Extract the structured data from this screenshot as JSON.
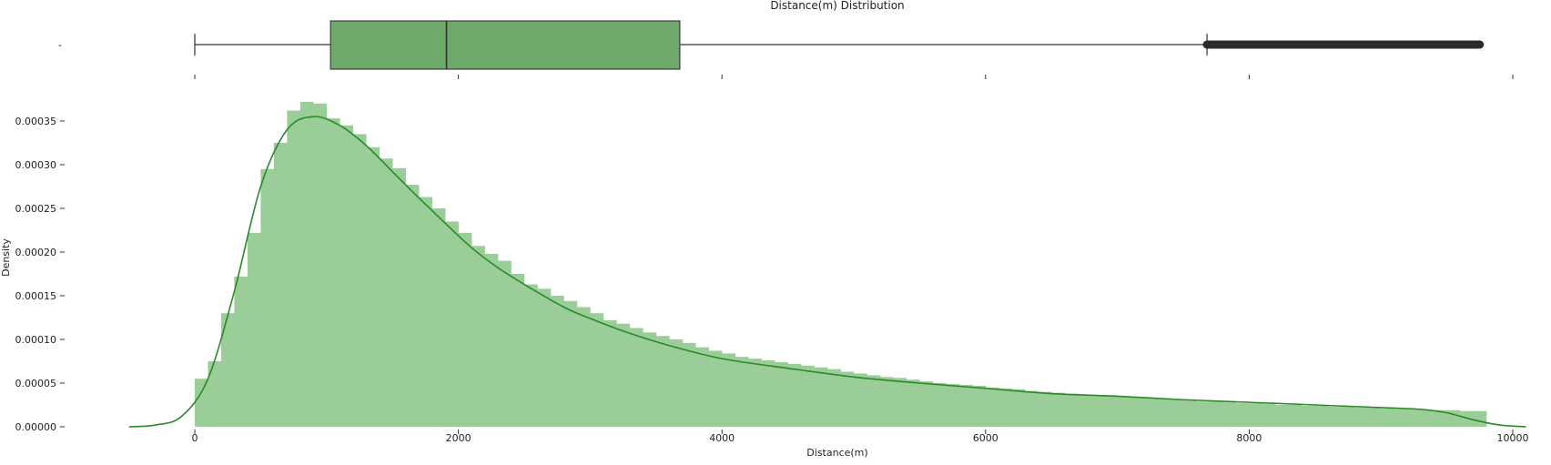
{
  "chart_data": [
    {
      "type": "box",
      "title": "Distance(m) Distribution",
      "y_tick_labels": [
        "-"
      ],
      "box": {
        "whisker_low": 0,
        "q1": 1030,
        "median": 1910,
        "q3": 3680,
        "whisker_high": 7680,
        "outlier_range": [
          7680,
          9750
        ]
      },
      "colors": {
        "box": "#6ea86a",
        "outliers": "#2b2b2b"
      }
    },
    {
      "type": "histogram",
      "xlabel": "Distance(m)",
      "ylabel": "Density",
      "xlim": [
        -500,
        10200
      ],
      "ylim": [
        0,
        0.00038
      ],
      "x_ticks": [
        0,
        2000,
        4000,
        6000,
        8000,
        10000
      ],
      "y_ticks": [
        0,
        5e-05,
        0.0001,
        0.00015,
        0.0002,
        0.00025,
        0.0003,
        0.00035
      ],
      "y_tick_labels": [
        "0.00000",
        "0.00005",
        "0.00010",
        "0.00015",
        "0.00020",
        "0.00025",
        "0.00030",
        "0.00035"
      ],
      "grid": false,
      "bin_start": 0,
      "bin_width": 100,
      "values": [
        5.5e-05,
        7.5e-05,
        0.00013,
        0.000172,
        0.000222,
        0.000295,
        0.000325,
        0.000362,
        0.000372,
        0.00037,
        0.000353,
        0.000345,
        0.000335,
        0.00032,
        0.000307,
        0.000296,
        0.000277,
        0.000263,
        0.00025,
        0.000235,
        0.000222,
        0.000207,
        0.000198,
        0.00019,
        0.000175,
        0.000163,
        0.000158,
        0.00015,
        0.000144,
        0.000137,
        0.00013,
        0.000122,
        0.000118,
        0.000113,
        0.000108,
        0.000104,
        0.0001,
        9.6e-05,
        9.1e-05,
        8.7e-05,
        8.4e-05,
        8e-05,
        7.8e-05,
        7.6e-05,
        7.4e-05,
        7.2e-05,
        7e-05,
        6.8e-05,
        6.6e-05,
        6.3e-05,
        6.1e-05,
        5.9e-05,
        5.7e-05,
        5.6e-05,
        5.4e-05,
        5.2e-05,
        5e-05,
        4.9e-05,
        4.8e-05,
        4.7e-05,
        4.5e-05,
        4.4e-05,
        4.3e-05,
        4.1e-05,
        4e-05,
        3.9e-05,
        3.8e-05,
        3.7e-05,
        3.6e-05,
        3.6e-05,
        3.5e-05,
        3.4e-05,
        3.3e-05,
        3.2e-05,
        3.1e-05,
        3e-05,
        2.9e-05,
        2.9e-05,
        2.8e-05,
        2.7e-05,
        2.7e-05,
        2.6e-05,
        2.5e-05,
        2.5e-05,
        2.4e-05,
        2.4e-05,
        2.3e-05,
        2.3e-05,
        2.2e-05,
        2.2e-05,
        2.1e-05,
        2.1e-05,
        2e-05,
        1.9e-05,
        1.9e-05,
        1.9e-05,
        1.8e-05,
        1.8e-05
      ],
      "kde": {
        "x": [
          -500,
          -300,
          -100,
          100,
          300,
          500,
          700,
          900,
          1100,
          1300,
          1500,
          1700,
          1900,
          2100,
          2300,
          2500,
          2800,
          3000,
          3300,
          3600,
          4000,
          4500,
          5000,
          5500,
          6000,
          6500,
          7000,
          7500,
          8000,
          8500,
          9000,
          9300,
          9500,
          9700,
          9900,
          10100
        ],
        "y": [
          0.0,
          2e-06,
          1.2e-05,
          5.5e-05,
          0.000155,
          0.000275,
          0.00034,
          0.000355,
          0.000345,
          0.000322,
          0.000292,
          0.000262,
          0.000233,
          0.000205,
          0.000182,
          0.000163,
          0.000137,
          0.000124,
          0.000107,
          9.3e-05,
          7.8e-05,
          6.7e-05,
          5.7e-05,
          5e-05,
          4.4e-05,
          3.8e-05,
          3.5e-05,
          3.1e-05,
          2.8e-05,
          2.5e-05,
          2.2e-05,
          2e-05,
          1.6e-05,
          8e-06,
          2e-06,
          0.0
        ]
      },
      "colors": {
        "bars": "#9acd98",
        "kde": "#2a8a2a"
      }
    }
  ]
}
